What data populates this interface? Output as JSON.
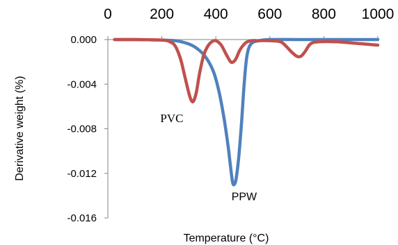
{
  "chart_data": {
    "type": "line",
    "title": "",
    "xlabel": "Temperature (°C)",
    "ylabel": "Derivative weight (%)",
    "xlim": [
      0,
      1000
    ],
    "ylim": [
      -0.016,
      0.0
    ],
    "x_ticks": [
      "0",
      "200",
      "400",
      "600",
      "800",
      "1000"
    ],
    "y_ticks": [
      "0.000",
      "-0.004",
      "-0.008",
      "-0.012",
      "-0.016"
    ],
    "x_axis_position": "top",
    "grid": false,
    "legend": "none",
    "series": [
      {
        "color": "#4F81BD",
        "x": [
          25,
          100,
          200,
          250,
          300,
          330,
          360,
          390,
          410,
          430,
          445,
          455,
          462,
          468,
          475,
          485,
          495,
          505,
          515,
          530,
          560,
          600,
          700,
          800,
          900,
          1000
        ],
        "y": [
          0.0,
          0.0,
          -5e-05,
          -0.0001,
          -0.0004,
          -0.0008,
          -0.0015,
          -0.0028,
          -0.0045,
          -0.007,
          -0.0095,
          -0.0115,
          -0.0128,
          -0.013,
          -0.0125,
          -0.0105,
          -0.0075,
          -0.004,
          -0.0015,
          -0.0004,
          -0.0001,
          0.0,
          0.0,
          0.0,
          0.0,
          0.0
        ]
      },
      {
        "color": "#C0504D",
        "x": [
          25,
          100,
          200,
          230,
          250,
          270,
          285,
          300,
          310,
          318,
          328,
          340,
          355,
          370,
          385,
          400,
          420,
          440,
          455,
          465,
          475,
          490,
          510,
          530,
          560,
          600,
          640,
          660,
          680,
          700,
          715,
          730,
          750,
          780,
          850,
          900,
          950,
          1000
        ],
        "y": [
          0.0,
          0.0,
          -5e-05,
          -0.0002,
          -0.0006,
          -0.0018,
          -0.0033,
          -0.0048,
          -0.0055,
          -0.0055,
          -0.0047,
          -0.003,
          -0.0014,
          -0.0006,
          -0.0002,
          -0.0001,
          -0.0005,
          -0.0014,
          -0.002,
          -0.002,
          -0.0017,
          -0.0009,
          -0.0003,
          -0.0001,
          -0.0001,
          -0.0001,
          -0.0002,
          -0.0006,
          -0.0011,
          -0.0015,
          -0.0015,
          -0.0011,
          -0.0004,
          -0.0002,
          -0.0002,
          -0.0003,
          -0.0004,
          -0.0005
        ]
      }
    ],
    "annotations": [
      {
        "text": "PVC",
        "x": 237,
        "y": -0.0074
      },
      {
        "text": "PPW",
        "x": 505,
        "y": -0.0144
      }
    ]
  }
}
